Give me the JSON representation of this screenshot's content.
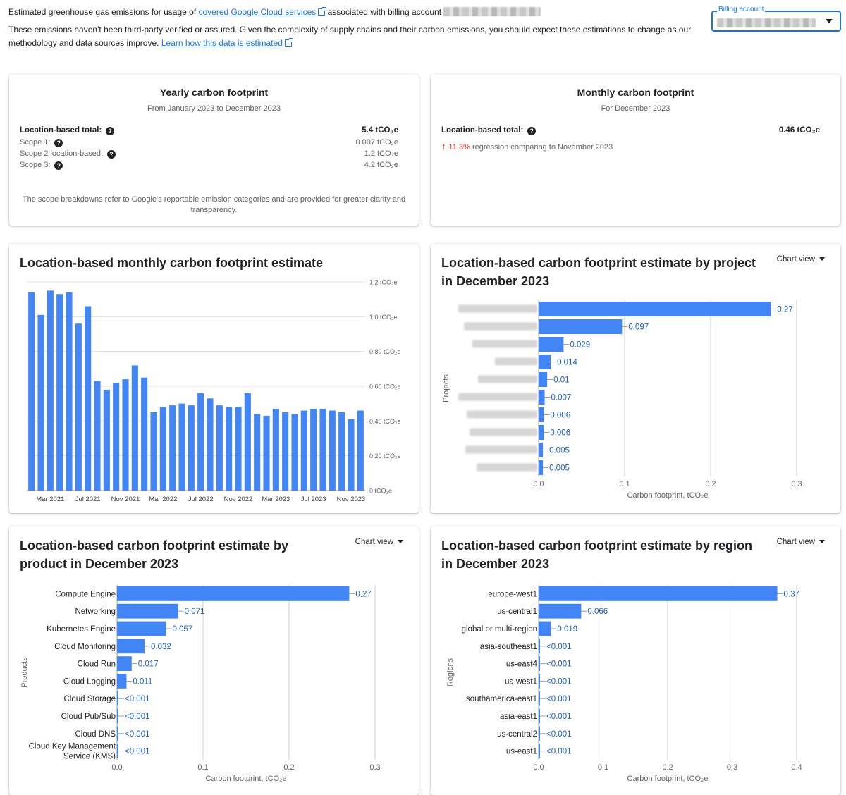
{
  "intro": {
    "line1_prefix": "Estimated greenhouse gas emissions for usage of",
    "line1_link": "covered Google Cloud services",
    "line1_suffix": "associated with billing account",
    "line2": "These emissions haven't been third-party verified or assured. Given the complexity of supply chains and their carbon emissions, you should expect these estimations to change as our methodology and data sources improve.",
    "line2_link": "Learn how this data is estimated"
  },
  "billing": {
    "label": "Billing account"
  },
  "yearly": {
    "title": "Yearly carbon footprint",
    "subtitle": "From January 2023 to December 2023",
    "total_label": "Location-based total:",
    "total_value": "5.4 tCO₂e",
    "rows": [
      {
        "label": "Scope 1:",
        "value": "0.007 tCO₂e",
        "help": true
      },
      {
        "label": "Scope 2 location-based:",
        "value": "1.2 tCO₂e",
        "help": true
      },
      {
        "label": "Scope 3:",
        "value": "4.2 tCO₂e",
        "help": true
      }
    ],
    "footnote": "The scope breakdowns refer to Google's reportable emission categories and are provided for greater clarity and transparency."
  },
  "monthly": {
    "title": "Monthly carbon footprint",
    "subtitle": "For December 2023",
    "total_label": "Location-based total:",
    "total_value": "0.46 tCO₂e",
    "regression_pct": "11.3%",
    "regression_text": "regression comparing to November 2023"
  },
  "chart_view_label": "Chart view",
  "chart_data": [
    {
      "type": "bar",
      "title": "Location-based monthly carbon footprint estimate",
      "ylim": [
        0,
        1.2
      ],
      "y_ticks": [
        0,
        0.2,
        0.4,
        0.6,
        0.8,
        1.0,
        1.2
      ],
      "y_tick_labels": [
        "0 tCO₂e",
        "0.20 tCO₂e",
        "0.40 tCO₂e",
        "0.60 tCO₂e",
        "0.80 tCO₂e",
        "1.0 tCO₂e",
        "1.2 tCO₂e"
      ],
      "x_tick_labels": [
        "Mar 2021",
        "Jul 2021",
        "Nov 2021",
        "Mar 2022",
        "Jul 2022",
        "Nov 2022",
        "Mar 2023",
        "Jul 2023",
        "Nov 2023"
      ],
      "x_tick_indices": [
        2,
        6,
        10,
        14,
        18,
        22,
        26,
        30,
        34
      ],
      "categories": [
        "Jan 2021",
        "Feb 2021",
        "Mar 2021",
        "Apr 2021",
        "May 2021",
        "Jun 2021",
        "Jul 2021",
        "Aug 2021",
        "Sep 2021",
        "Oct 2021",
        "Nov 2021",
        "Dec 2021",
        "Jan 2022",
        "Feb 2022",
        "Mar 2022",
        "Apr 2022",
        "May 2022",
        "Jun 2022",
        "Jul 2022",
        "Aug 2022",
        "Sep 2022",
        "Oct 2022",
        "Nov 2022",
        "Dec 2022",
        "Jan 2023",
        "Feb 2023",
        "Mar 2023",
        "Apr 2023",
        "May 2023",
        "Jun 2023",
        "Jul 2023",
        "Aug 2023",
        "Sep 2023",
        "Oct 2023",
        "Nov 2023",
        "Dec 2023"
      ],
      "values": [
        1.14,
        1.01,
        1.15,
        1.13,
        1.14,
        0.96,
        1.06,
        0.63,
        0.58,
        0.62,
        0.64,
        0.72,
        0.65,
        0.45,
        0.48,
        0.49,
        0.5,
        0.49,
        0.56,
        0.53,
        0.49,
        0.48,
        0.48,
        0.56,
        0.44,
        0.43,
        0.47,
        0.45,
        0.44,
        0.46,
        0.47,
        0.47,
        0.46,
        0.45,
        0.41,
        0.46
      ]
    },
    {
      "type": "bar",
      "orientation": "horizontal",
      "title": "Location-based carbon footprint estimate by project in December 2023",
      "xlabel": "Carbon footprint, tCO₂e",
      "ylabel": "Projects",
      "xlim": [
        0,
        0.3
      ],
      "x_ticks": [
        "0.0",
        "0.1",
        "0.2",
        "0.3"
      ],
      "values": [
        0.27,
        0.097,
        0.029,
        0.014,
        0.01,
        0.007,
        0.006,
        0.006,
        0.005,
        0.005
      ],
      "value_labels": [
        "0.27",
        "0.097",
        "0.029",
        "0.014",
        "0.01",
        "0.007",
        "0.006",
        "0.006",
        "0.005",
        "0.005"
      ]
    },
    {
      "type": "bar",
      "orientation": "horizontal",
      "title": "Location-based carbon footprint estimate by product in December 2023",
      "xlabel": "Carbon footprint, tCO₂e",
      "ylabel": "Products",
      "xlim": [
        0,
        0.3
      ],
      "x_ticks": [
        "0.0",
        "0.1",
        "0.2",
        "0.3"
      ],
      "categories": [
        "Compute Engine",
        "Networking",
        "Kubernetes Engine",
        "Cloud Monitoring",
        "Cloud Run",
        "Cloud Logging",
        "Cloud Storage",
        "Cloud Pub/Sub",
        "Cloud DNS",
        "Cloud Key Management Service (KMS)"
      ],
      "values": [
        0.27,
        0.071,
        0.057,
        0.032,
        0.017,
        0.011,
        0.0005,
        0.0005,
        0.0005,
        0.0005
      ],
      "value_labels": [
        "0.27",
        "0.071",
        "0.057",
        "0.032",
        "0.017",
        "0.011",
        "<0.001",
        "<0.001",
        "<0.001",
        "<0.001"
      ]
    },
    {
      "type": "bar",
      "orientation": "horizontal",
      "title": "Location-based carbon footprint estimate by region in December 2023",
      "xlabel": "Carbon footprint, tCO₂e",
      "ylabel": "Regions",
      "xlim": [
        0,
        0.4
      ],
      "x_ticks": [
        "0.0",
        "0.1",
        "0.2",
        "0.3",
        "0.4"
      ],
      "categories": [
        "europe-west1",
        "us-central1",
        "global or multi-region",
        "asia-southeast1",
        "us-east4",
        "us-west1",
        "southamerica-east1",
        "asia-east1",
        "us-central2",
        "us-east1"
      ],
      "values": [
        0.37,
        0.066,
        0.019,
        0.0005,
        0.0005,
        0.0005,
        0.0005,
        0.0005,
        0.0005,
        0.0005
      ],
      "value_labels": [
        "0.37",
        "0.066",
        "0.019",
        "<0.001",
        "<0.001",
        "<0.001",
        "<0.001",
        "<0.001",
        "<0.001",
        "<0.001"
      ]
    }
  ]
}
